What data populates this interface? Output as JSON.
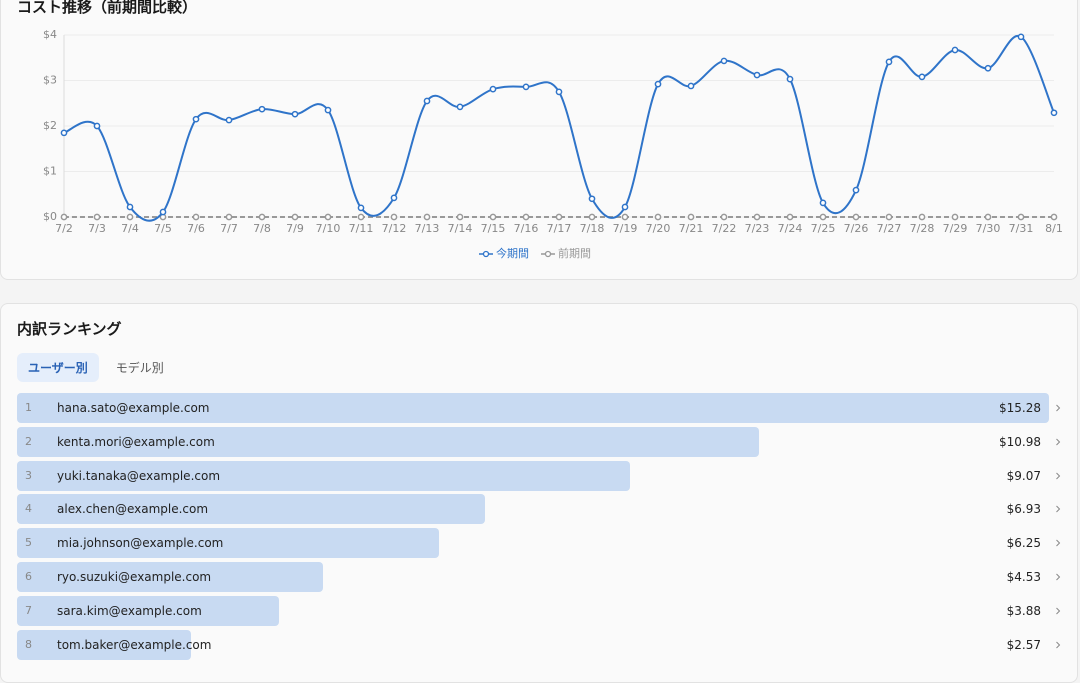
{
  "chart_data": [
    {
      "type": "line",
      "title": "コスト推移（前期間比較）",
      "categories": [
        "7/2",
        "7/3",
        "7/4",
        "7/5",
        "7/6",
        "7/7",
        "7/8",
        "7/9",
        "7/10",
        "7/11",
        "7/12",
        "7/13",
        "7/14",
        "7/15",
        "7/16",
        "7/17",
        "7/18",
        "7/19",
        "7/20",
        "7/21",
        "7/22",
        "7/23",
        "7/24",
        "7/25",
        "7/26",
        "7/27",
        "7/28",
        "7/29",
        "7/30",
        "7/31",
        "8/1"
      ],
      "series": [
        {
          "name": "今期間",
          "color": "#2f74c9",
          "values": [
            1.85,
            2.0,
            0.22,
            0.11,
            2.15,
            2.13,
            2.37,
            2.26,
            2.35,
            0.2,
            0.42,
            2.55,
            2.42,
            2.81,
            2.86,
            2.75,
            0.4,
            0.22,
            2.92,
            2.88,
            3.43,
            3.12,
            3.03,
            0.31,
            0.59,
            3.41,
            3.08,
            3.67,
            3.27,
            3.96,
            2.29
          ]
        },
        {
          "name": "前期間",
          "color": "#999999",
          "dashed": true,
          "values": [
            0,
            0,
            0,
            0,
            0,
            0,
            0,
            0,
            0,
            0,
            0,
            0,
            0,
            0,
            0,
            0,
            0,
            0,
            0,
            0,
            0,
            0,
            0,
            0,
            0,
            0,
            0,
            0,
            0,
            0,
            0
          ]
        }
      ],
      "ylim": [
        0,
        4
      ],
      "yticks": [
        {
          "value": 0,
          "label": "$0"
        },
        {
          "value": 1,
          "label": "$1"
        },
        {
          "value": 2,
          "label": "$2"
        },
        {
          "value": 3,
          "label": "$3"
        },
        {
          "value": 4,
          "label": "$4"
        }
      ],
      "grid": true,
      "legend": "bottom"
    },
    {
      "type": "ranking",
      "title": "内訳ランキング",
      "tabs": [
        "ユーザー別",
        "モデル別"
      ],
      "active_tab": 0,
      "ranks": [
        1,
        2,
        3,
        4,
        5,
        6,
        7,
        8
      ],
      "categories": [
        "hana.sato@example.com",
        "kenta.mori@example.com",
        "yuki.tanaka@example.com",
        "alex.chen@example.com",
        "mia.johnson@example.com",
        "ryo.suzuki@example.com",
        "sara.kim@example.com",
        "tom.baker@example.com"
      ],
      "values": [
        15.28,
        10.98,
        9.07,
        6.93,
        6.25,
        4.53,
        3.88,
        2.57
      ],
      "value_labels": [
        "$15.28",
        "$10.98",
        "$9.07",
        "$6.93",
        "$6.25",
        "$4.53",
        "$3.88",
        "$2.57"
      ],
      "color": "#c8daf2"
    }
  ]
}
